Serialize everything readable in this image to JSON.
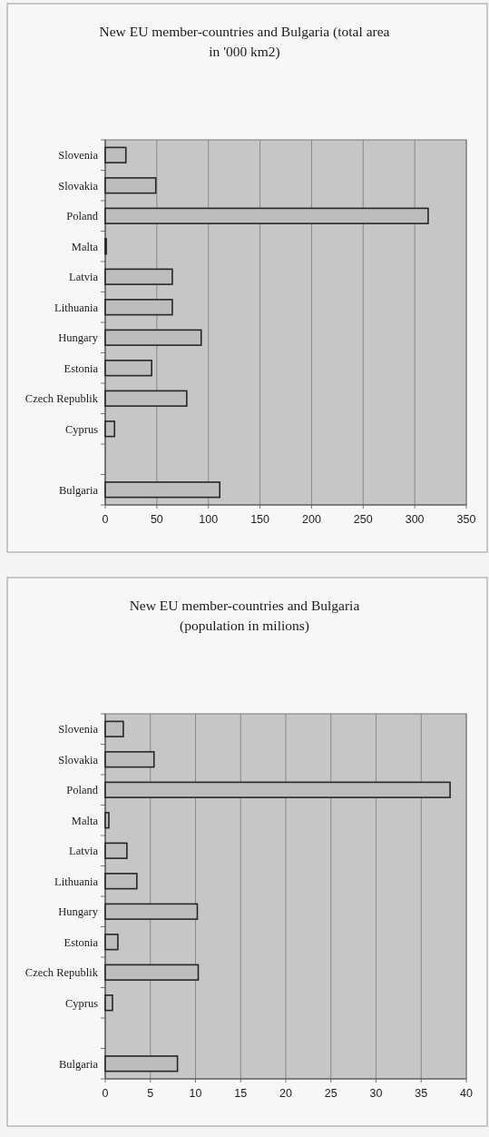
{
  "chart_data": [
    {
      "type": "bar",
      "orientation": "horizontal",
      "title": "New EU member-countries and Bulgaria (total area\nin '000 km2)",
      "categories": [
        "Slovenia",
        "Slovakia",
        "Poland",
        "Malta",
        "Latvia",
        "Lithuania",
        "Hungary",
        "Estonia",
        "Czech Republik",
        "Cyprus",
        null,
        "Bulgaria"
      ],
      "values": [
        20,
        49,
        313,
        1,
        65,
        65,
        93,
        45,
        79,
        9,
        null,
        111
      ],
      "color": "#bdbdbd",
      "xlim": [
        0,
        350
      ],
      "xticks": [
        0,
        50,
        100,
        150,
        200,
        250,
        300,
        350
      ],
      "grid": "x"
    },
    {
      "type": "bar",
      "orientation": "horizontal",
      "title": "New EU member-countries and Bulgaria\n(population in milions)",
      "categories": [
        "Slovenia",
        "Slovakia",
        "Poland",
        "Malta",
        "Latvia",
        "Lithuania",
        "Hungary",
        "Estonia",
        "Czech Republik",
        "Cyprus",
        null,
        "Bulgaria"
      ],
      "values": [
        2.0,
        5.4,
        38.2,
        0.4,
        2.4,
        3.5,
        10.2,
        1.4,
        10.3,
        0.8,
        null,
        8.0
      ],
      "color": "#bdbdbd",
      "xlim": [
        0,
        40
      ],
      "xticks": [
        0,
        5,
        10,
        15,
        20,
        25,
        30,
        35,
        40
      ],
      "grid": "x"
    }
  ]
}
